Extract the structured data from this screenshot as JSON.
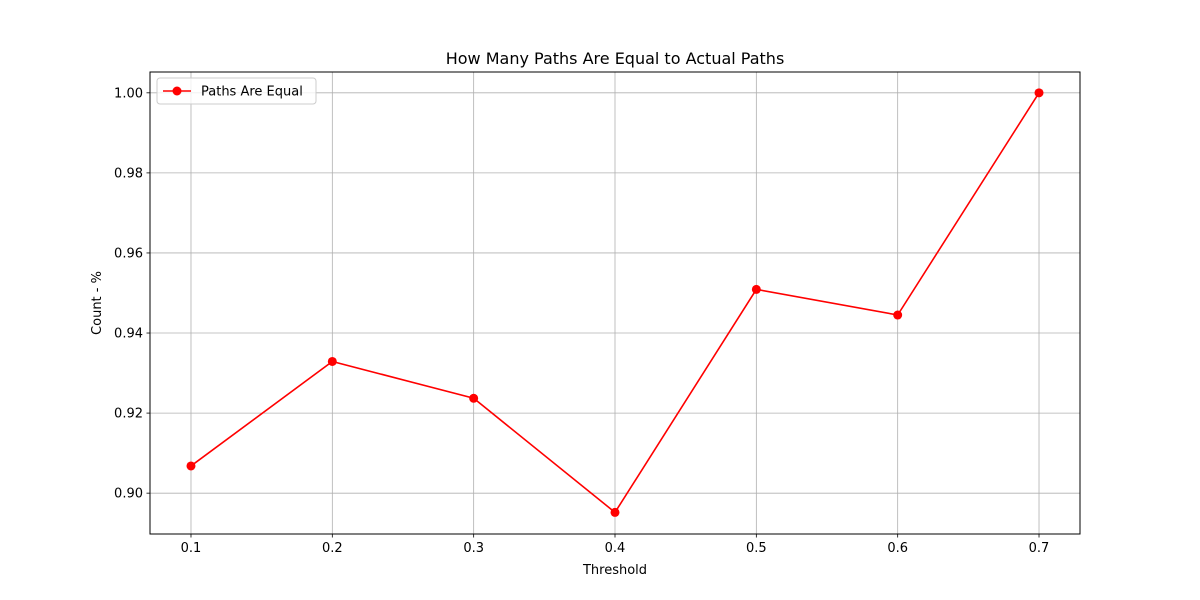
{
  "chart_data": {
    "type": "line",
    "title": "How Many Paths Are Equal to Actual Paths",
    "xlabel": "Threshold",
    "ylabel": "Count - %",
    "x": [
      0.1,
      0.2,
      0.3,
      0.4,
      0.5,
      0.6,
      0.7
    ],
    "x_tick_labels": [
      "0.1",
      "0.2",
      "0.3",
      "0.4",
      "0.5",
      "0.6",
      "0.7"
    ],
    "y_ticks": [
      0.9,
      0.92,
      0.94,
      0.96,
      0.98,
      1.0
    ],
    "y_tick_labels": [
      "0.90",
      "0.92",
      "0.94",
      "0.96",
      "0.98",
      "1.00"
    ],
    "xlim": [
      0.071,
      0.729
    ],
    "ylim": [
      0.8898,
      1.0052
    ],
    "grid": true,
    "legend_position": "top-left",
    "series": [
      {
        "name": "Paths Are Equal",
        "color": "#ff0000",
        "marker": "circle",
        "values": [
          0.9068,
          0.9329,
          0.9237,
          0.8952,
          0.9509,
          0.9445,
          1.0
        ]
      }
    ]
  }
}
